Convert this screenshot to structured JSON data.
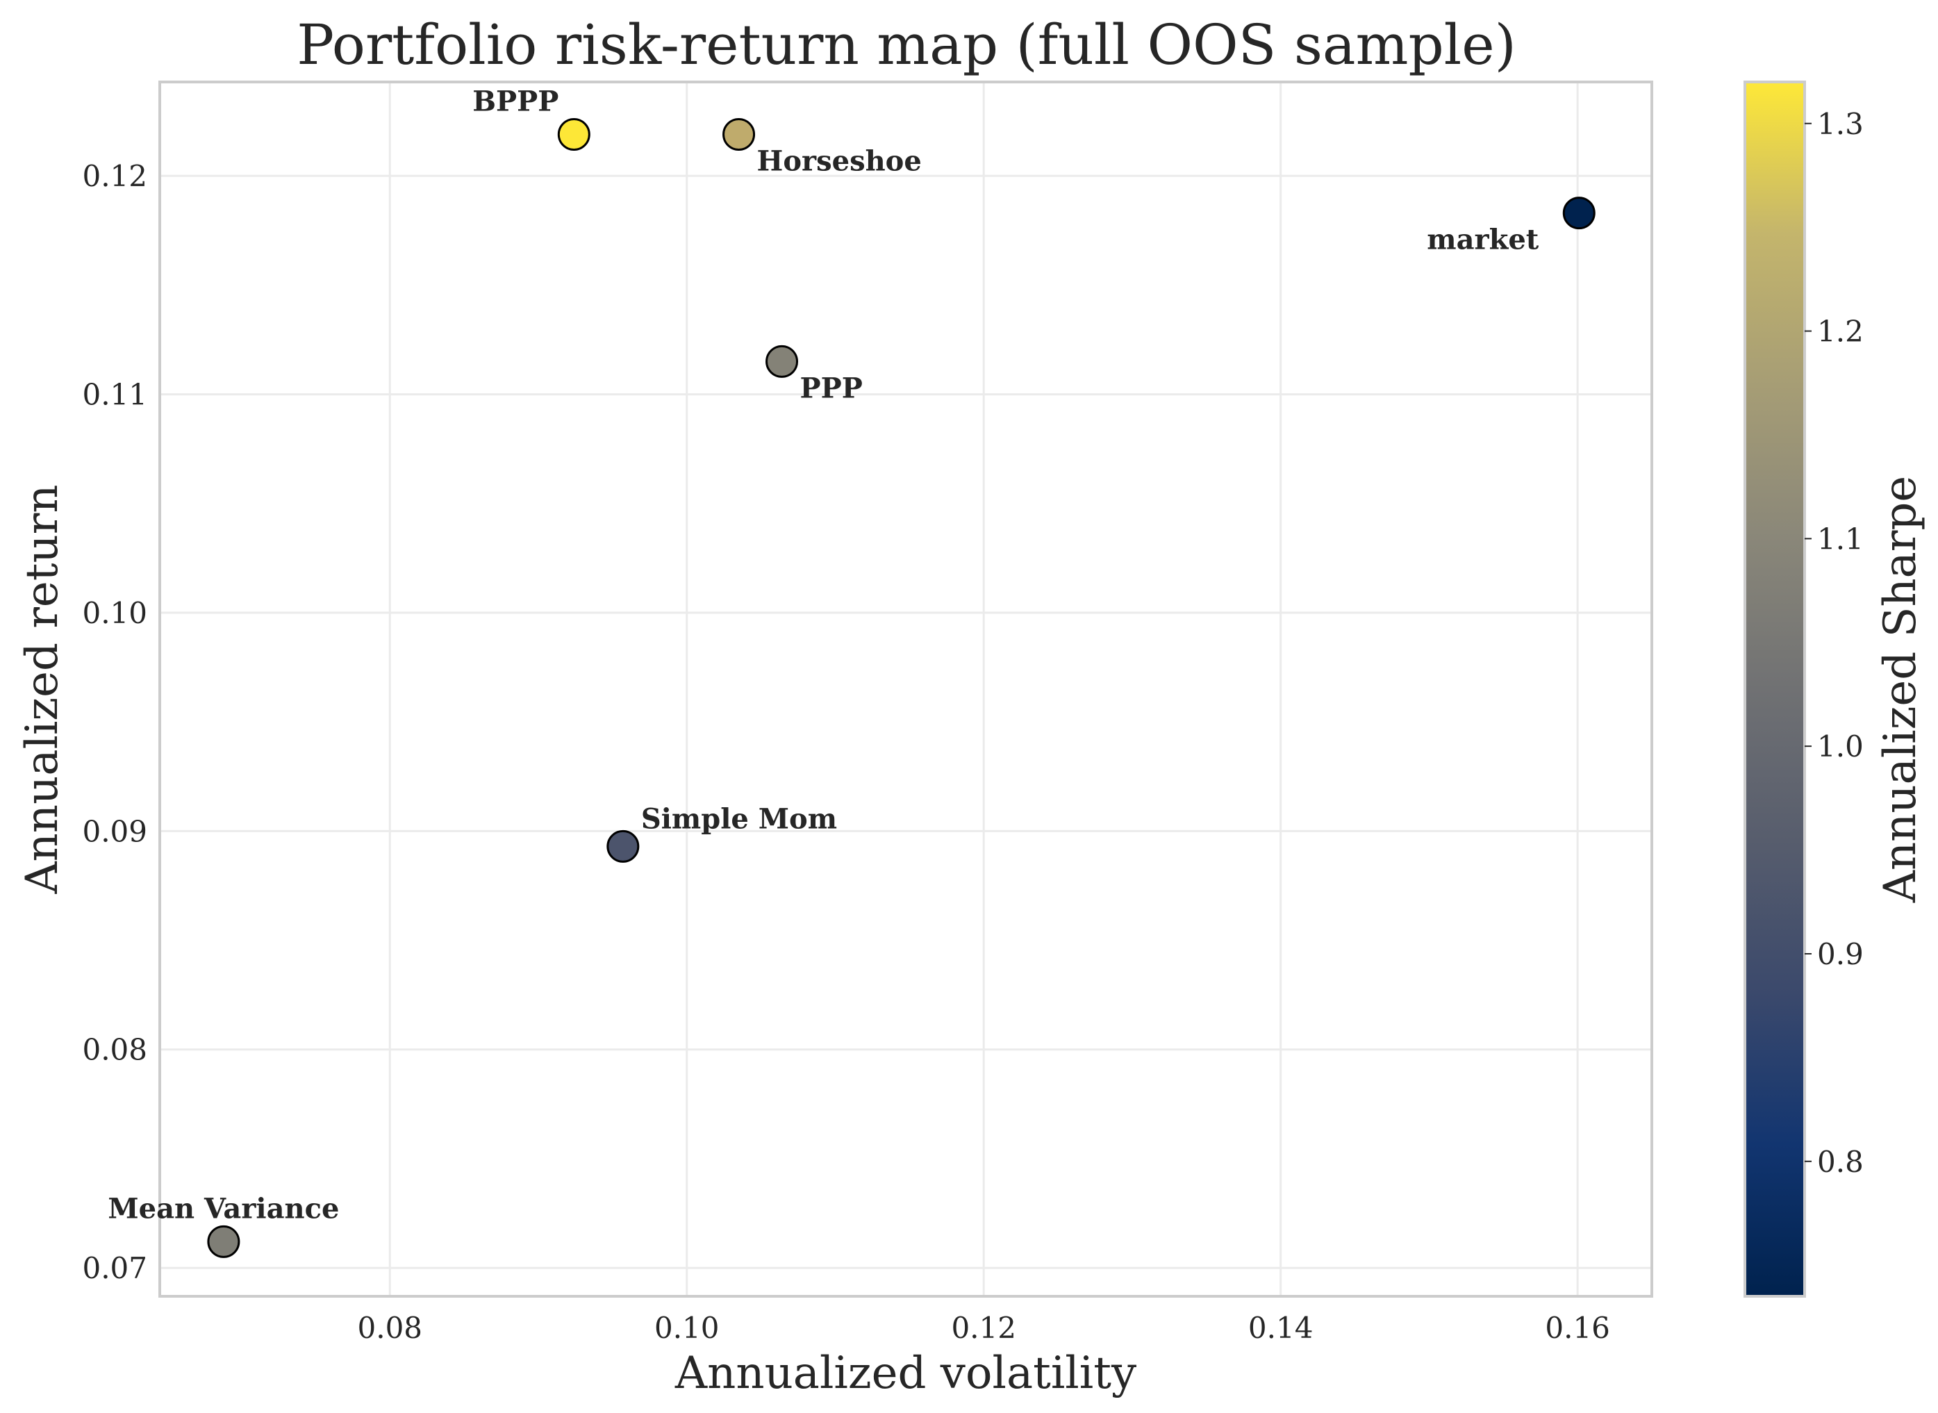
{
  "chart_data": {
    "type": "scatter",
    "title": "Portfolio risk-return map (full OOS sample)",
    "xlabel": "Annualized volatility",
    "ylabel": "Annualized return",
    "xlim": [
      0.0645,
      0.165
    ],
    "ylim": [
      0.0687,
      0.1243
    ],
    "xticks": [
      0.08,
      0.1,
      0.12,
      0.14,
      0.16
    ],
    "xtick_labels": [
      "0.08",
      "0.10",
      "0.12",
      "0.14",
      "0.16"
    ],
    "yticks": [
      0.07,
      0.08,
      0.09,
      0.1,
      0.11,
      0.12
    ],
    "ytick_labels": [
      "0.07",
      "0.08",
      "0.09",
      "0.10",
      "0.11",
      "0.12"
    ],
    "grid": true,
    "colorbar": {
      "label": "Annualized Sharpe",
      "colormap": "cividis",
      "range": [
        0.735,
        1.32
      ],
      "ticks": [
        0.8,
        0.9,
        1.0,
        1.1,
        1.2,
        1.3
      ],
      "tick_labels": [
        "0.8",
        "0.9",
        "1.0",
        "1.1",
        "1.2",
        "1.3"
      ]
    },
    "points": [
      {
        "name": "BPPP",
        "x": 0.0924,
        "y": 0.1219,
        "sharpe": 1.32,
        "color": "#fde737",
        "label_pos": "upper-left"
      },
      {
        "name": "Horseshoe",
        "x": 0.1035,
        "y": 0.1219,
        "sharpe": 1.18,
        "color": "#bfab6c",
        "label_pos": "lower-right"
      },
      {
        "name": "market",
        "x": 0.1601,
        "y": 0.1183,
        "sharpe": 0.74,
        "color": "#00224e",
        "label_pos": "lower-left"
      },
      {
        "name": "PPP",
        "x": 0.1064,
        "y": 0.1115,
        "sharpe": 1.05,
        "color": "#848277",
        "label_pos": "lower-right"
      },
      {
        "name": "Simple Mom",
        "x": 0.0957,
        "y": 0.0893,
        "sharpe": 0.93,
        "color": "#4c546c",
        "label_pos": "upper-right"
      },
      {
        "name": "Mean Variance",
        "x": 0.0688,
        "y": 0.0712,
        "sharpe": 1.04,
        "color": "#7f7e76",
        "label_pos": "upper-center"
      }
    ]
  }
}
